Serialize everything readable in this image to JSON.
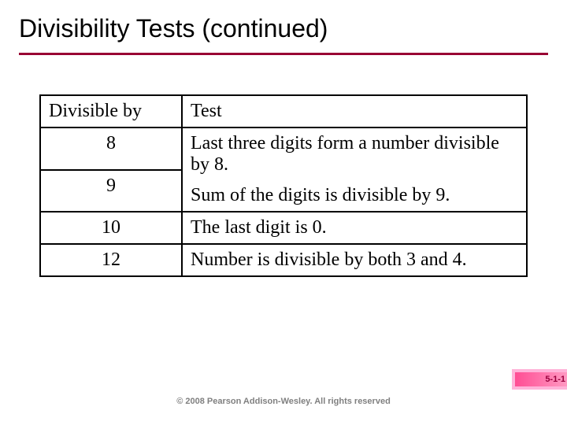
{
  "title": "Divisibility Tests (continued)",
  "table": {
    "header": {
      "col1": "Divisible by",
      "col2": "Test"
    },
    "rows": [
      {
        "div": "8",
        "test": "Last three digits form a number divisible by 8."
      },
      {
        "div": "9",
        "test": "Sum of the digits is divisible by 9."
      },
      {
        "div": "10",
        "test": "The last digit is 0."
      },
      {
        "div": "12",
        "test": "Number is divisible by both 3 and 4."
      }
    ]
  },
  "badge": "5-1-1",
  "copyright": "© 2008 Pearson Addison-Wesley. All rights reserved",
  "colors": {
    "divider": "#990033",
    "badge_bg": "#ffb3d9",
    "badge_grad_from": "#ff4d94",
    "badge_grad_to": "#ff99c2",
    "badge_text": "#99003d",
    "footer_text": "#808080"
  }
}
